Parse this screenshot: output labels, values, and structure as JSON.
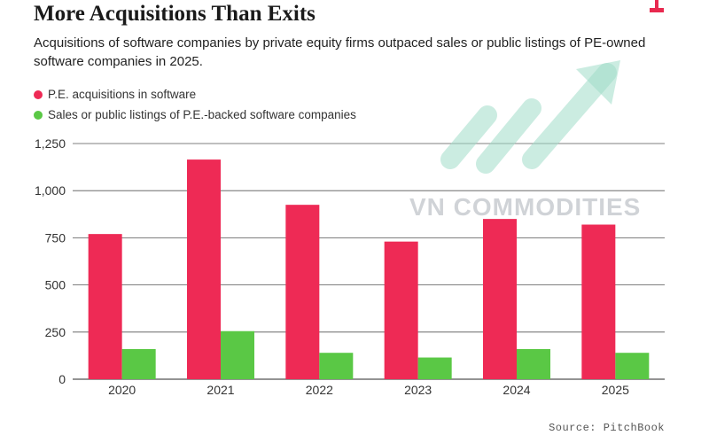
{
  "header": {
    "title": "More Acquisitions Than Exits",
    "subtitle": "Acquisitions of software companies by private equity firms outpaced sales or public listings of PE-owned software companies in 2025."
  },
  "watermark": {
    "text": "VN COMMODITIES"
  },
  "footer": {
    "source": "Source: PitchBook"
  },
  "colors": {
    "acquisitions": "#ee2a55",
    "exits": "#5ac845",
    "grid": "#555555",
    "logo": "#e8294f"
  },
  "chart_data": {
    "type": "bar",
    "title": "More Acquisitions Than Exits",
    "categories": [
      "2020",
      "2021",
      "2022",
      "2023",
      "2024",
      "2025"
    ],
    "series": [
      {
        "name": "P.E. acquisitions in software",
        "color": "#ee2a55",
        "values": [
          770,
          1165,
          925,
          730,
          850,
          820
        ]
      },
      {
        "name": "Sales or public listings of P.E.-backed software companies",
        "color": "#5ac845",
        "values": [
          160,
          255,
          140,
          115,
          160,
          140
        ]
      }
    ],
    "yticks": [
      0,
      250,
      500,
      750,
      1000,
      1250
    ],
    "ytick_labels": [
      "0",
      "250",
      "500",
      "750",
      "1,000",
      "1,250"
    ],
    "ylim": [
      0,
      1250
    ],
    "xlabel": "",
    "ylabel": "",
    "legend": "top-left",
    "grid": true
  }
}
